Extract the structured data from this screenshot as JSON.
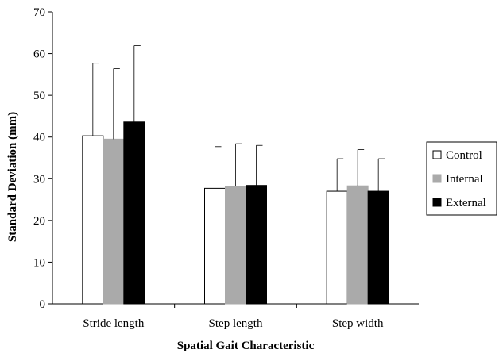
{
  "chart_data": {
    "type": "bar",
    "title": "",
    "xlabel": "Spatial Gait Characteristic",
    "ylabel": "Standard Deviation (mm)",
    "ylim": [
      0,
      70
    ],
    "yticks": [
      0,
      10,
      20,
      30,
      40,
      50,
      60,
      70
    ],
    "categories": [
      "Stride length",
      "Step length",
      "Step width"
    ],
    "series": [
      {
        "name": "Control",
        "color": "#ffffff",
        "values": [
          40.3,
          27.7,
          27.0
        ],
        "error": [
          17.4,
          10.0,
          7.8
        ]
      },
      {
        "name": "Internal",
        "color": "#aaaaaa",
        "values": [
          39.5,
          28.2,
          28.3
        ],
        "error": [
          16.9,
          10.2,
          8.7
        ]
      },
      {
        "name": "External",
        "color": "#000000",
        "values": [
          43.6,
          28.4,
          27.0
        ],
        "error": [
          18.3,
          9.6,
          7.8
        ]
      }
    ],
    "error_bars": "upper",
    "grid": false,
    "legend_position": "right"
  }
}
